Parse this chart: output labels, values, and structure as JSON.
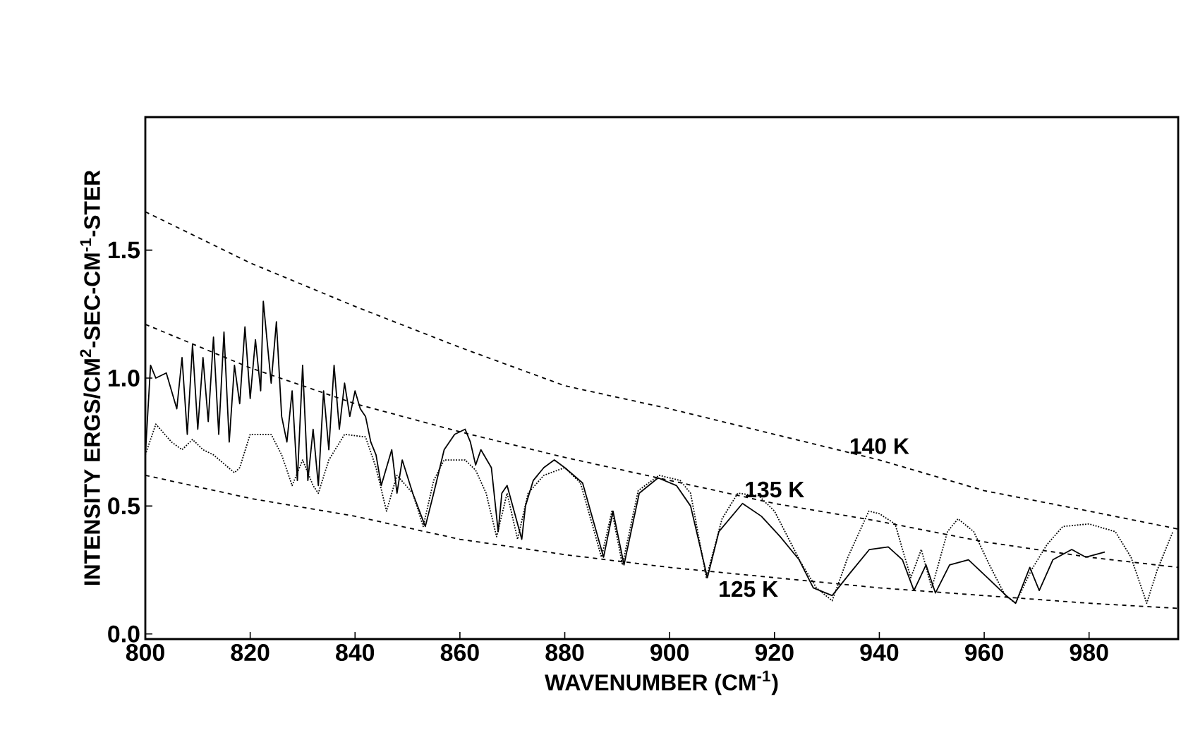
{
  "chart_data": {
    "type": "line",
    "xlabel": "WAVENUMBER (CM$^{-1}$)",
    "ylabel": "INTENSITY ERGS/CM$^{2}$-SEC-CM$^{-1}$-STER",
    "xlim": [
      800,
      997
    ],
    "ylim": [
      -0.02,
      2.02
    ],
    "xticks": [
      800,
      820,
      840,
      860,
      880,
      900,
      920,
      940,
      960,
      980
    ],
    "yticks": [
      {
        "value": 0,
        "label": "0.0"
      },
      {
        "value": 0.5,
        "label": "0.5"
      },
      {
        "value": 1,
        "label": "1.0"
      },
      {
        "value": 1.5,
        "label": "1.5"
      }
    ],
    "grid": false,
    "series": [
      {
        "color": "#000000",
        "line_style": "dashed",
        "x": [
          800,
          820,
          840,
          860,
          880,
          900,
          920,
          940,
          960,
          980,
          997
        ],
        "values": [
          1.65,
          1.45,
          1.28,
          1.12,
          0.97,
          0.88,
          0.78,
          0.68,
          0.56,
          0.48,
          0.41
        ]
      },
      {
        "color": "#000000",
        "line_style": "dashed",
        "x": [
          800,
          820,
          840,
          860,
          880,
          900,
          920,
          940,
          960,
          980,
          997
        ],
        "values": [
          1.21,
          1.04,
          0.9,
          0.79,
          0.69,
          0.6,
          0.51,
          0.44,
          0.36,
          0.3,
          0.26
        ]
      },
      {
        "color": "#000000",
        "line_style": "dashed",
        "x": [
          800,
          820,
          840,
          860,
          880,
          900,
          920,
          940,
          960,
          980,
          997
        ],
        "values": [
          0.62,
          0.53,
          0.46,
          0.37,
          0.31,
          0.26,
          0.22,
          0.18,
          0.15,
          0.12,
          0.1
        ]
      },
      {
        "color": "#000000",
        "line_style": "dotted",
        "x": [
          800,
          802,
          805,
          807,
          809,
          811,
          813,
          817,
          818,
          820,
          824,
          826,
          828,
          830,
          832,
          833,
          835,
          838,
          842,
          844,
          846,
          848,
          851,
          853,
          855,
          857,
          861,
          863,
          865,
          867,
          869,
          871,
          873,
          876,
          880,
          883,
          887,
          889,
          891,
          894,
          898,
          902,
          904,
          907,
          910,
          913,
          917,
          920,
          925,
          928,
          931,
          934,
          938,
          940,
          943,
          946,
          948,
          950,
          953,
          955,
          958,
          961,
          964,
          966,
          969,
          972,
          975,
          980,
          985,
          988,
          991,
          993,
          996
        ],
        "values": [
          0.7,
          0.82,
          0.75,
          0.72,
          0.76,
          0.72,
          0.7,
          0.63,
          0.65,
          0.78,
          0.78,
          0.7,
          0.58,
          0.68,
          0.58,
          0.55,
          0.68,
          0.78,
          0.77,
          0.65,
          0.48,
          0.62,
          0.55,
          0.42,
          0.6,
          0.68,
          0.68,
          0.64,
          0.55,
          0.38,
          0.55,
          0.37,
          0.55,
          0.62,
          0.65,
          0.59,
          0.3,
          0.48,
          0.27,
          0.56,
          0.62,
          0.6,
          0.55,
          0.22,
          0.45,
          0.55,
          0.54,
          0.48,
          0.28,
          0.18,
          0.13,
          0.3,
          0.48,
          0.47,
          0.43,
          0.22,
          0.33,
          0.18,
          0.4,
          0.45,
          0.4,
          0.27,
          0.15,
          0.12,
          0.25,
          0.35,
          0.42,
          0.43,
          0.4,
          0.3,
          0.12,
          0.25,
          0.4
        ]
      },
      {
        "color": "#000000",
        "line_style": "solid",
        "x": [
          800,
          801,
          802,
          804,
          806,
          807,
          808,
          809,
          810,
          811,
          812,
          813,
          814,
          815,
          816,
          817,
          818,
          819,
          820,
          821,
          822,
          822.5,
          824,
          825,
          826,
          827,
          828,
          829,
          830,
          831,
          832,
          833,
          834,
          835,
          836,
          837,
          838,
          839,
          840,
          841,
          842,
          843,
          844,
          845,
          847,
          848,
          849,
          851,
          853.4,
          855,
          857,
          859,
          861,
          862,
          863,
          864,
          866,
          867.3,
          868,
          869,
          871.8,
          872.5,
          874,
          876,
          878,
          880,
          883.4,
          887.4,
          889.2,
          891.3,
          894.2,
          897.8,
          901.3,
          904,
          907.2,
          909.4,
          913.9,
          917.5,
          921.1,
          924.7,
          927.4,
          931,
          934.5,
          938.1,
          941.7,
          944.4,
          946.6,
          948.9,
          950.7,
          953.4,
          957,
          960.6,
          964.2,
          966,
          968.7,
          970.5,
          973.1,
          976.7,
          979.4,
          983
        ],
        "values": [
          0.7,
          1.05,
          1.0,
          1.02,
          0.88,
          1.08,
          0.78,
          1.13,
          0.8,
          1.08,
          0.83,
          1.16,
          0.78,
          1.18,
          0.75,
          1.05,
          0.9,
          1.2,
          0.92,
          1.15,
          0.95,
          1.3,
          0.98,
          1.22,
          0.85,
          0.75,
          0.95,
          0.6,
          1.05,
          0.6,
          0.8,
          0.58,
          0.95,
          0.72,
          1.05,
          0.8,
          0.98,
          0.85,
          0.95,
          0.88,
          0.85,
          0.75,
          0.7,
          0.58,
          0.72,
          0.55,
          0.68,
          0.55,
          0.42,
          0.55,
          0.72,
          0.78,
          0.8,
          0.75,
          0.66,
          0.72,
          0.65,
          0.4,
          0.55,
          0.58,
          0.37,
          0.5,
          0.6,
          0.65,
          0.68,
          0.65,
          0.59,
          0.3,
          0.48,
          0.27,
          0.55,
          0.61,
          0.58,
          0.5,
          0.22,
          0.4,
          0.51,
          0.46,
          0.38,
          0.29,
          0.18,
          0.15,
          0.24,
          0.33,
          0.34,
          0.29,
          0.17,
          0.27,
          0.16,
          0.27,
          0.29,
          0.22,
          0.15,
          0.12,
          0.26,
          0.17,
          0.29,
          0.33,
          0.3,
          0.32
        ]
      }
    ],
    "annotations": [
      {
        "text": "140 K",
        "x": 940,
        "y": 0.68
      },
      {
        "text": "135 K",
        "x": 920,
        "y": 0.51
      },
      {
        "text": "125 K",
        "x": 915,
        "y": 0.23
      }
    ]
  }
}
